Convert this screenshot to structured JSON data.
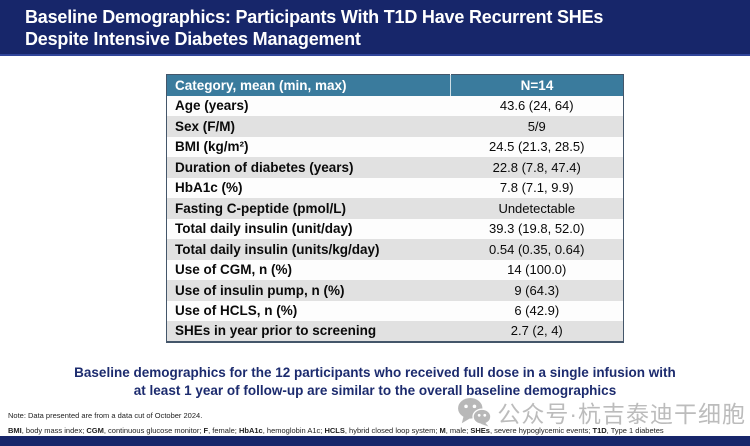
{
  "title": {
    "line1": "Baseline Demographics: Participants With T1D Have Recurrent SHEs",
    "line2": "Despite Intensive Diabetes Management"
  },
  "table": {
    "header": {
      "category": "Category, mean (min, max)",
      "value": "N=14"
    },
    "rows": [
      {
        "category": "Age (years)",
        "value": "43.6 (24, 64)"
      },
      {
        "category": "Sex (F/M)",
        "value": "5/9"
      },
      {
        "category": "BMI (kg/m²)",
        "value": "24.5 (21.3, 28.5)"
      },
      {
        "category": "Duration of diabetes (years)",
        "value": "22.8 (7.8, 47.4)"
      },
      {
        "category": "HbA1c (%)",
        "value": "7.8 (7.1, 9.9)"
      },
      {
        "category": "Fasting C-peptide (pmol/L)",
        "value": "Undetectable"
      },
      {
        "category": "Total daily insulin (unit/day)",
        "value": "39.3 (19.8, 52.0)"
      },
      {
        "category": "Total daily insulin (units/kg/day)",
        "value": "0.54 (0.35, 0.64)"
      },
      {
        "category": "Use of CGM, n (%)",
        "value": "14 (100.0)"
      },
      {
        "category": "Use of insulin pump, n (%)",
        "value": "9 (64.3)"
      },
      {
        "category": "Use of HCLS, n (%)",
        "value": "6 (42.9)"
      },
      {
        "category": "SHEs in year prior to screening",
        "value": "2.7 (2, 4)"
      }
    ]
  },
  "statement": {
    "line1": "Baseline demographics for the 12 participants who received full dose in a single infusion with",
    "line2": "at least 1 year of follow-up are similar to the overall baseline demographics"
  },
  "footnote": {
    "note": "Note: Data presented are from a data cut of October 2024.",
    "abbreviations": [
      {
        "term": "BMI",
        "definition": "body mass index"
      },
      {
        "term": "CGM",
        "definition": "continuous glucose monitor"
      },
      {
        "term": "F",
        "definition": "female"
      },
      {
        "term": "HbA1c",
        "definition": "hemoglobin A1c"
      },
      {
        "term": "HCLS",
        "definition": "hybrid closed loop system"
      },
      {
        "term": "M",
        "definition": "male"
      },
      {
        "term": "SHEs",
        "definition": "severe hypoglycemic events"
      },
      {
        "term": "T1D",
        "definition": "Type 1 diabetes"
      }
    ]
  },
  "watermark": {
    "label": "公众号·杭吉泰迪干细胞",
    "icon": "wechat-icon"
  },
  "colors": {
    "title_bar": "#17266A",
    "title_bar_accent": "#30459A",
    "table_header": "#3A7B9D",
    "row_alt_gray": "#E1E1E1",
    "statement_text": "#1C2B6E",
    "watermark_gray": "#B3B3B3"
  }
}
